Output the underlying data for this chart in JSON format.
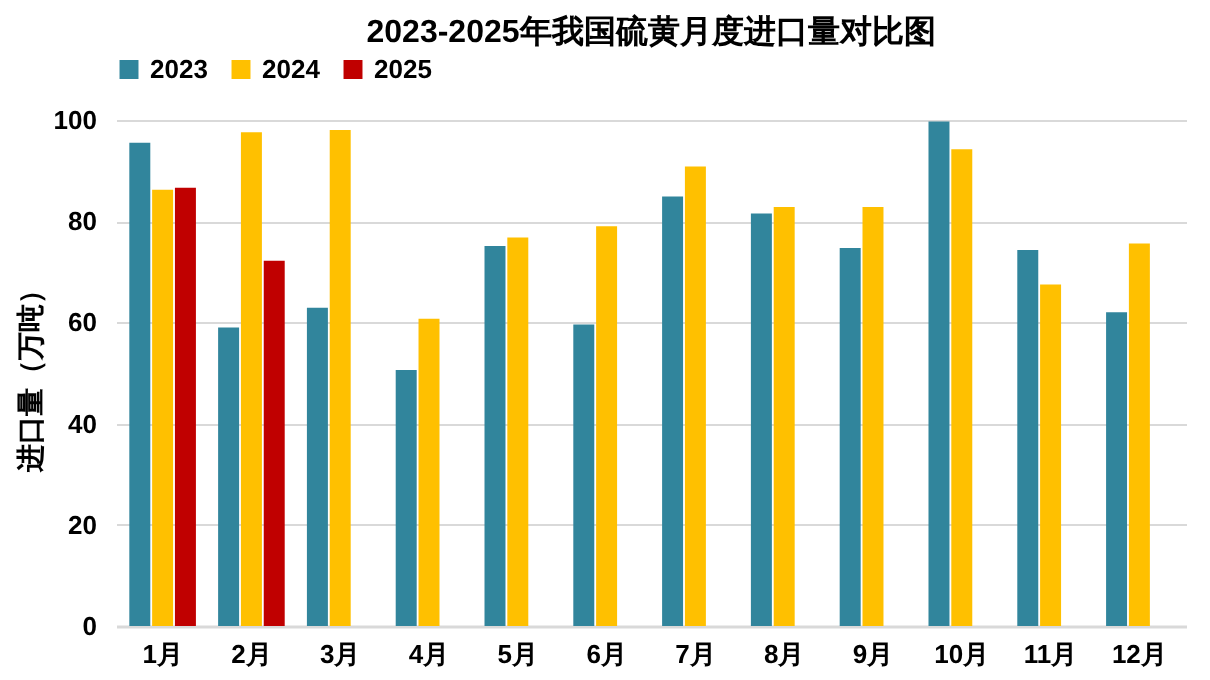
{
  "chart_data": {
    "type": "bar",
    "title": "2023-2025年我国硫黄月度进口量对比图",
    "ylabel": "进口量（万吨）",
    "categories": [
      "1月",
      "2月",
      "3月",
      "4月",
      "5月",
      "6月",
      "7月",
      "8月",
      "9月",
      "10月",
      "11月",
      "12月"
    ],
    "series": [
      {
        "name": "2023",
        "color": "#31859c",
        "values": [
          95.5,
          59.0,
          62.9,
          50.6,
          75.1,
          59.6,
          84.9,
          81.5,
          74.7,
          99.7,
          74.3,
          62.0
        ]
      },
      {
        "name": "2024",
        "color": "#ffc000",
        "values": [
          86.2,
          97.6,
          98.0,
          60.7,
          76.8,
          79.0,
          90.8,
          82.8,
          82.8,
          94.2,
          67.5,
          75.6
        ]
      },
      {
        "name": "2025",
        "color": "#c00000",
        "values": [
          86.6,
          72.2,
          null,
          null,
          null,
          null,
          null,
          null,
          null,
          null,
          null,
          null
        ]
      }
    ],
    "ylim": [
      0,
      100
    ],
    "yticks": [
      0,
      20,
      40,
      60,
      80,
      100
    ],
    "grid": "y",
    "legend": "top"
  }
}
